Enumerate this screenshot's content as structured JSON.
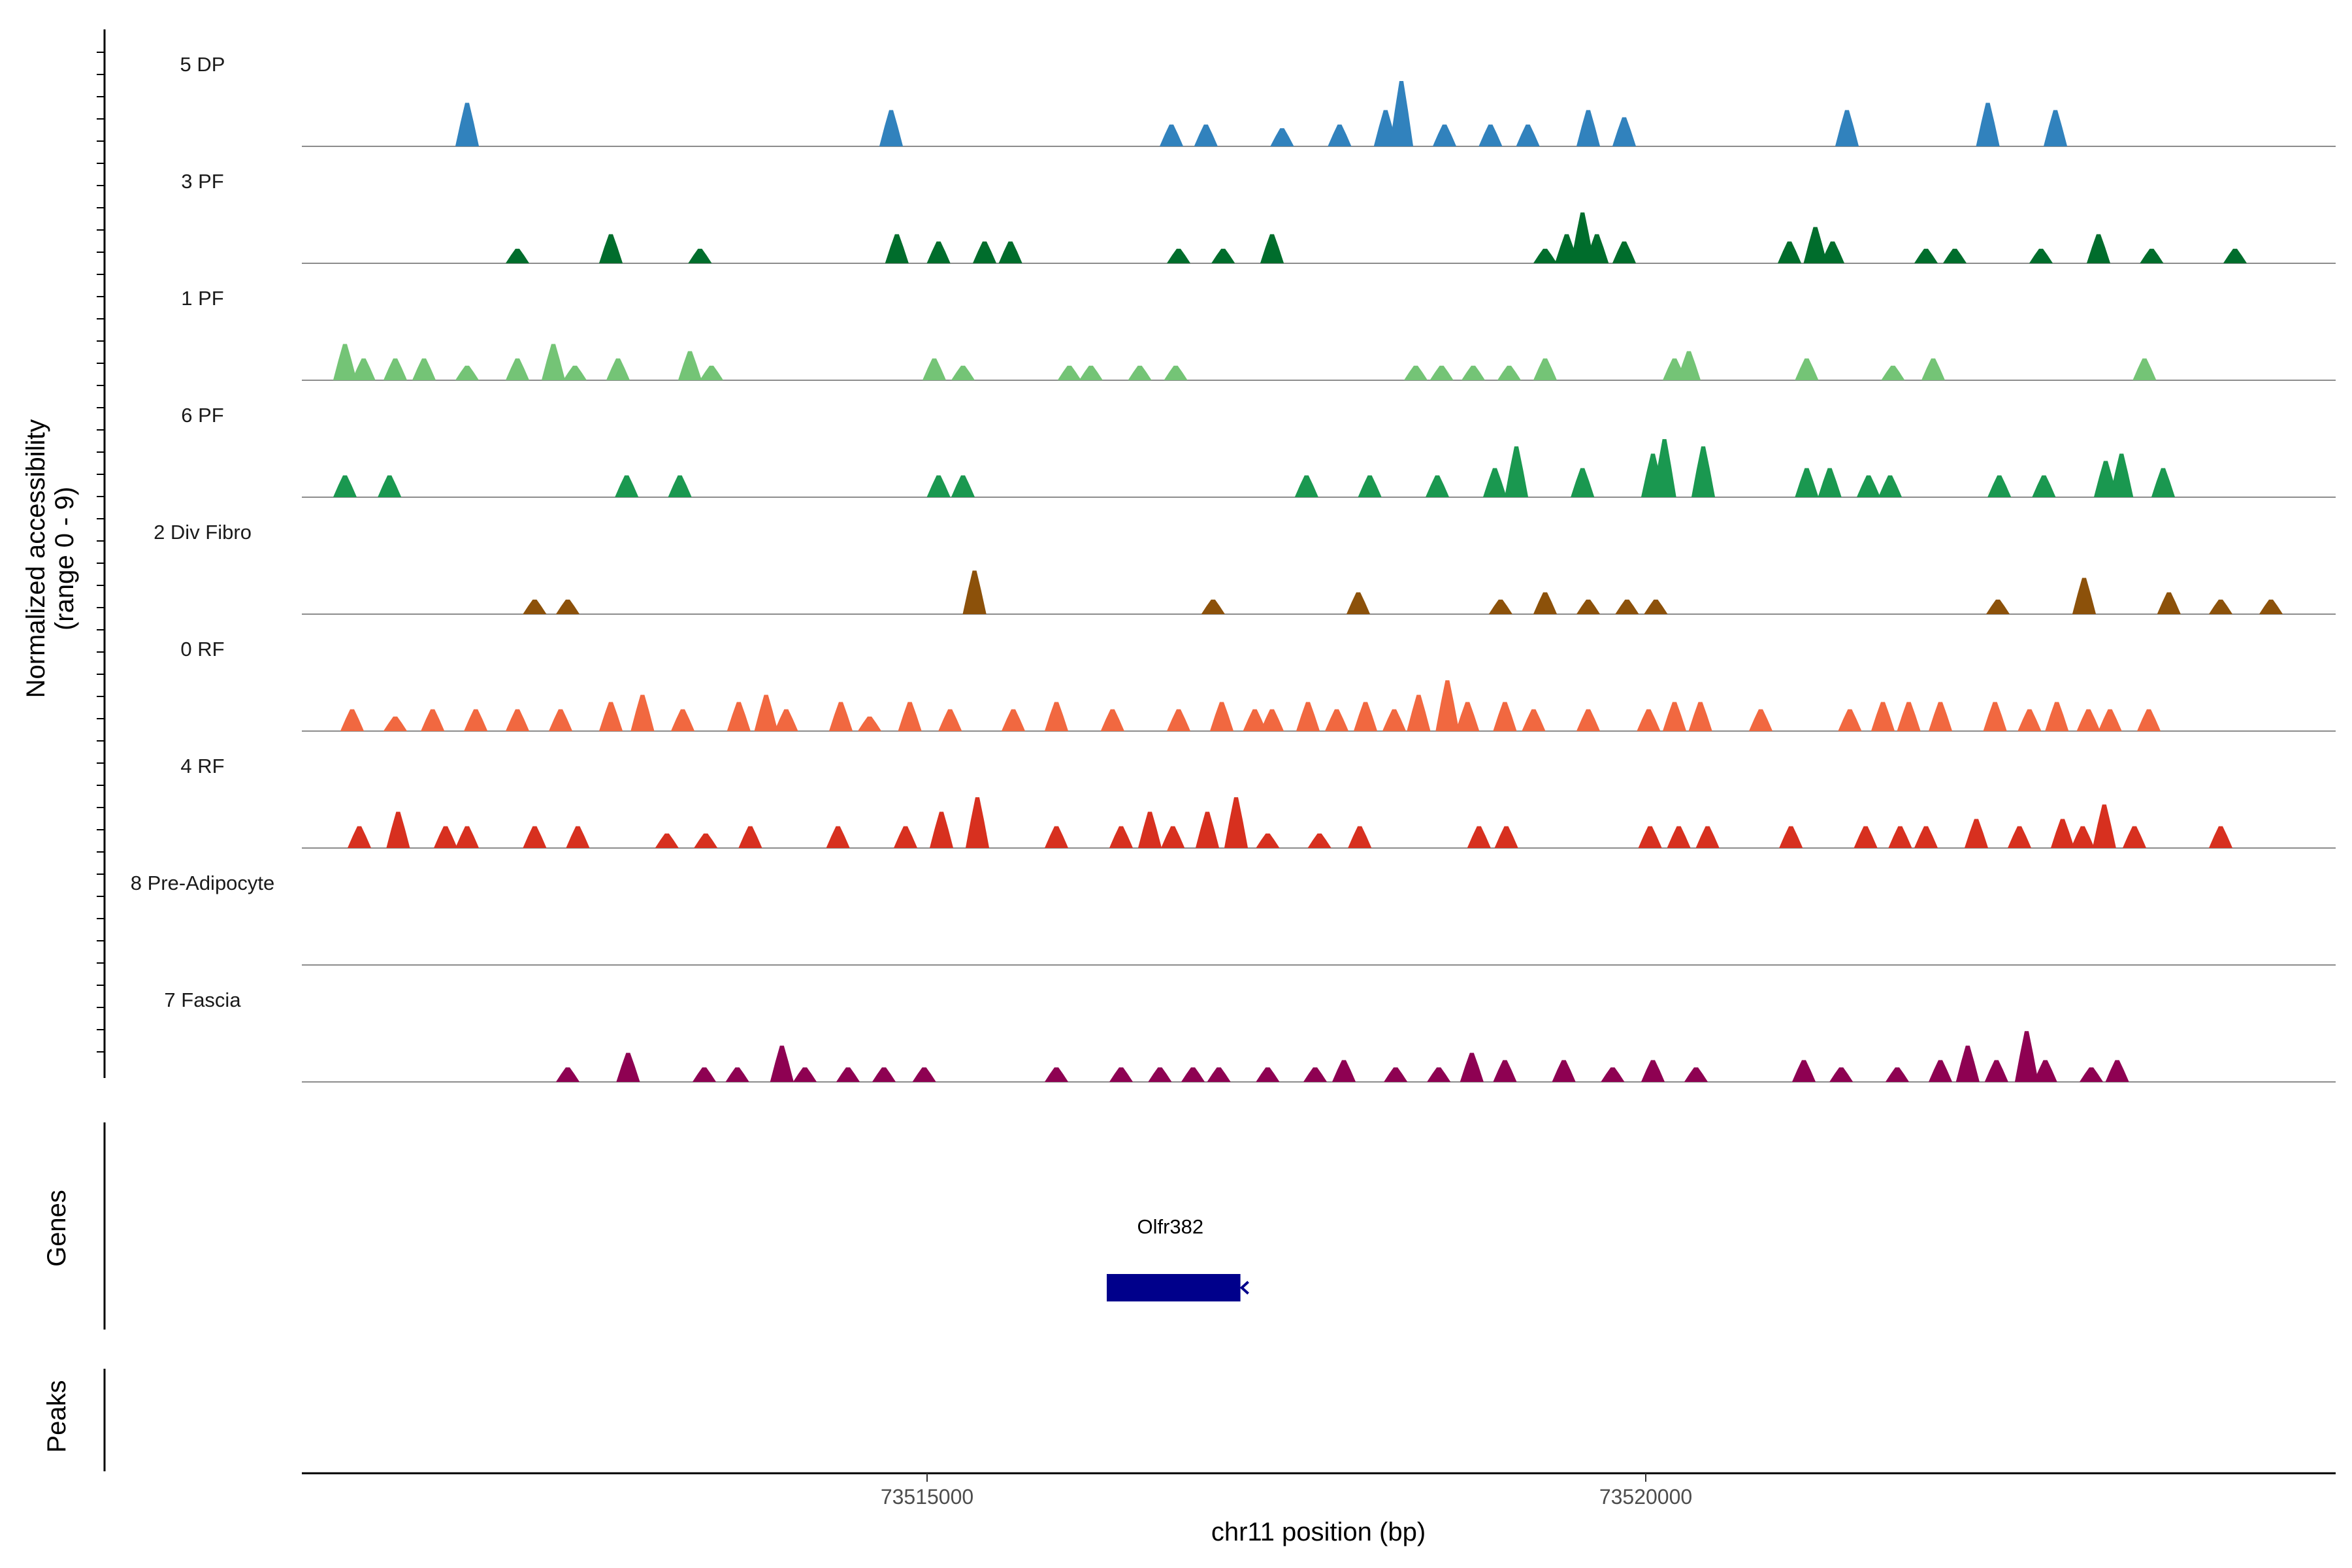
{
  "chart_data": {
    "type": "area",
    "title": "",
    "ylabel": [
      "Normalized accessibility",
      "(range 0 - 9)"
    ],
    "y_range": [
      0,
      9
    ],
    "xlabel": "chr11 position (bp)",
    "x_range": [
      73510650,
      73524800
    ],
    "x_ticks": [
      73515000,
      73520000
    ],
    "x_tick_labels": [
      "73515000",
      "73520000"
    ],
    "genes_label": "Genes",
    "peaks_label": "Peaks",
    "gene": {
      "name": "Olfr382",
      "start": 73516250,
      "end": 73517180,
      "strand": "-",
      "color": "#00008B"
    },
    "bin_width_bp": 110,
    "tracks": [
      {
        "name": "5 DP",
        "color": "#3182BD",
        "peaks": [
          [
            73511800,
            6
          ],
          [
            73514750,
            5
          ],
          [
            73516700,
            3
          ],
          [
            73516940,
            3
          ],
          [
            73517470,
            2.5
          ],
          [
            73517870,
            3
          ],
          [
            73518190,
            5
          ],
          [
            73518300,
            9
          ],
          [
            73518600,
            3
          ],
          [
            73518920,
            3
          ],
          [
            73519180,
            3
          ],
          [
            73519600,
            5
          ],
          [
            73519850,
            4
          ],
          [
            73521400,
            5
          ],
          [
            73522380,
            6
          ],
          [
            73522850,
            5
          ]
        ]
      },
      {
        "name": "3 PF",
        "color": "#006D2C",
        "peaks": [
          [
            73512150,
            2
          ],
          [
            73512800,
            4
          ],
          [
            73513420,
            2
          ],
          [
            73514790,
            4
          ],
          [
            73515080,
            3
          ],
          [
            73515400,
            3
          ],
          [
            73515580,
            3
          ],
          [
            73516750,
            2
          ],
          [
            73517060,
            2
          ],
          [
            73517400,
            4
          ],
          [
            73519300,
            2
          ],
          [
            73519450,
            4
          ],
          [
            73519560,
            7
          ],
          [
            73519660,
            4
          ],
          [
            73519850,
            3
          ],
          [
            73521000,
            3
          ],
          [
            73521180,
            5
          ],
          [
            73521300,
            3
          ],
          [
            73521950,
            2
          ],
          [
            73522150,
            2
          ],
          [
            73522750,
            2
          ],
          [
            73523150,
            4
          ],
          [
            73523520,
            2
          ],
          [
            73524100,
            2
          ]
        ]
      },
      {
        "name": "1 PF",
        "color": "#74C476",
        "peaks": [
          [
            73510950,
            5
          ],
          [
            73511080,
            3
          ],
          [
            73511300,
            3
          ],
          [
            73511500,
            3
          ],
          [
            73511800,
            2
          ],
          [
            73512150,
            3
          ],
          [
            73512400,
            5
          ],
          [
            73512550,
            2
          ],
          [
            73512850,
            3
          ],
          [
            73513350,
            4
          ],
          [
            73513500,
            2
          ],
          [
            73515050,
            3
          ],
          [
            73515250,
            2
          ],
          [
            73515990,
            2
          ],
          [
            73516140,
            2
          ],
          [
            73516480,
            2
          ],
          [
            73516730,
            2
          ],
          [
            73518400,
            2
          ],
          [
            73518580,
            2
          ],
          [
            73518800,
            2
          ],
          [
            73519050,
            2
          ],
          [
            73519300,
            3
          ],
          [
            73520200,
            3
          ],
          [
            73520300,
            4
          ],
          [
            73521120,
            3
          ],
          [
            73521720,
            2
          ],
          [
            73522000,
            3
          ],
          [
            73523470,
            3
          ]
        ]
      },
      {
        "name": "6 PF",
        "color": "#1A9850",
        "peaks": [
          [
            73510950,
            3
          ],
          [
            73511260,
            3
          ],
          [
            73512910,
            3
          ],
          [
            73513280,
            3
          ],
          [
            73515080,
            3
          ],
          [
            73515250,
            3
          ],
          [
            73517640,
            3
          ],
          [
            73518080,
            3
          ],
          [
            73518550,
            3
          ],
          [
            73518950,
            4
          ],
          [
            73519100,
            7
          ],
          [
            73519560,
            4
          ],
          [
            73520050,
            6
          ],
          [
            73520130,
            8
          ],
          [
            73520400,
            7
          ],
          [
            73521120,
            4
          ],
          [
            73521280,
            4
          ],
          [
            73521550,
            3
          ],
          [
            73521700,
            3
          ],
          [
            73522460,
            3
          ],
          [
            73522770,
            3
          ],
          [
            73523200,
            5
          ],
          [
            73523310,
            6
          ],
          [
            73523600,
            4
          ]
        ]
      },
      {
        "name": "2 Div Fibro",
        "color": "#8C510A",
        "peaks": [
          [
            73512270,
            2
          ],
          [
            73512500,
            2
          ],
          [
            73515330,
            6
          ],
          [
            73516990,
            2
          ],
          [
            73518000,
            3
          ],
          [
            73518990,
            2
          ],
          [
            73519300,
            3
          ],
          [
            73519600,
            2
          ],
          [
            73519870,
            2
          ],
          [
            73520070,
            2
          ],
          [
            73522450,
            2
          ],
          [
            73523050,
            5
          ],
          [
            73523640,
            3
          ],
          [
            73524000,
            2
          ],
          [
            73524350,
            2
          ]
        ]
      },
      {
        "name": "0 RF",
        "color": "#F16840",
        "peaks": [
          [
            73511000,
            3
          ],
          [
            73511300,
            2
          ],
          [
            73511560,
            3
          ],
          [
            73511860,
            3
          ],
          [
            73512150,
            3
          ],
          [
            73512450,
            3
          ],
          [
            73512800,
            4
          ],
          [
            73513020,
            5
          ],
          [
            73513300,
            3
          ],
          [
            73513690,
            4
          ],
          [
            73513880,
            5
          ],
          [
            73514020,
            3
          ],
          [
            73514400,
            4
          ],
          [
            73514600,
            2
          ],
          [
            73514880,
            4
          ],
          [
            73515160,
            3
          ],
          [
            73515600,
            3
          ],
          [
            73515900,
            4
          ],
          [
            73516290,
            3
          ],
          [
            73516750,
            3
          ],
          [
            73517050,
            4
          ],
          [
            73517280,
            3
          ],
          [
            73517400,
            3
          ],
          [
            73517650,
            4
          ],
          [
            73517850,
            3
          ],
          [
            73518050,
            4
          ],
          [
            73518250,
            3
          ],
          [
            73518420,
            5
          ],
          [
            73518620,
            7
          ],
          [
            73518760,
            4
          ],
          [
            73519020,
            4
          ],
          [
            73519220,
            3
          ],
          [
            73519600,
            3
          ],
          [
            73520020,
            3
          ],
          [
            73520200,
            4
          ],
          [
            73520380,
            4
          ],
          [
            73520800,
            3
          ],
          [
            73521420,
            3
          ],
          [
            73521650,
            4
          ],
          [
            73521830,
            4
          ],
          [
            73522050,
            4
          ],
          [
            73522430,
            4
          ],
          [
            73522670,
            3
          ],
          [
            73522860,
            4
          ],
          [
            73523080,
            3
          ],
          [
            73523230,
            3
          ],
          [
            73523500,
            3
          ]
        ]
      },
      {
        "name": "4 RF",
        "color": "#D7301F",
        "peaks": [
          [
            73511050,
            3
          ],
          [
            73511320,
            5
          ],
          [
            73511650,
            3
          ],
          [
            73511800,
            3
          ],
          [
            73512270,
            3
          ],
          [
            73512570,
            3
          ],
          [
            73513190,
            2
          ],
          [
            73513460,
            2
          ],
          [
            73513770,
            3
          ],
          [
            73514380,
            3
          ],
          [
            73514850,
            3
          ],
          [
            73515100,
            5
          ],
          [
            73515350,
            7
          ],
          [
            73515900,
            3
          ],
          [
            73516350,
            3
          ],
          [
            73516550,
            5
          ],
          [
            73516710,
            3
          ],
          [
            73516950,
            5
          ],
          [
            73517150,
            7
          ],
          [
            73517370,
            2
          ],
          [
            73517730,
            2
          ],
          [
            73518010,
            3
          ],
          [
            73518840,
            3
          ],
          [
            73519030,
            3
          ],
          [
            73520030,
            3
          ],
          [
            73520230,
            3
          ],
          [
            73520430,
            3
          ],
          [
            73521010,
            3
          ],
          [
            73521530,
            3
          ],
          [
            73521770,
            3
          ],
          [
            73521950,
            3
          ],
          [
            73522300,
            4
          ],
          [
            73522600,
            3
          ],
          [
            73522900,
            4
          ],
          [
            73523040,
            3
          ],
          [
            73523190,
            6
          ],
          [
            73523400,
            3
          ],
          [
            73524000,
            3
          ]
        ]
      },
      {
        "name": "8 Pre-Adipocyte",
        "color": "#7F7F7F",
        "peaks": []
      },
      {
        "name": "7 Fascia",
        "color": "#8E0152",
        "peaks": [
          [
            73512500,
            2
          ],
          [
            73512920,
            4
          ],
          [
            73513450,
            2
          ],
          [
            73513680,
            2
          ],
          [
            73513990,
            5
          ],
          [
            73514150,
            2
          ],
          [
            73514450,
            2
          ],
          [
            73514700,
            2
          ],
          [
            73514980,
            2
          ],
          [
            73515900,
            2
          ],
          [
            73516350,
            2
          ],
          [
            73516620,
            2
          ],
          [
            73516850,
            2
          ],
          [
            73517030,
            2
          ],
          [
            73517370,
            2
          ],
          [
            73517700,
            2
          ],
          [
            73517900,
            3
          ],
          [
            73518260,
            2
          ],
          [
            73518560,
            2
          ],
          [
            73518790,
            4
          ],
          [
            73519020,
            3
          ],
          [
            73519430,
            3
          ],
          [
            73519770,
            2
          ],
          [
            73520050,
            3
          ],
          [
            73520350,
            2
          ],
          [
            73521100,
            3
          ],
          [
            73521360,
            2
          ],
          [
            73521750,
            2
          ],
          [
            73522050,
            3
          ],
          [
            73522240,
            5
          ],
          [
            73522440,
            3
          ],
          [
            73522650,
            7
          ],
          [
            73522780,
            3
          ],
          [
            73523100,
            2
          ],
          [
            73523280,
            3
          ]
        ]
      }
    ]
  }
}
